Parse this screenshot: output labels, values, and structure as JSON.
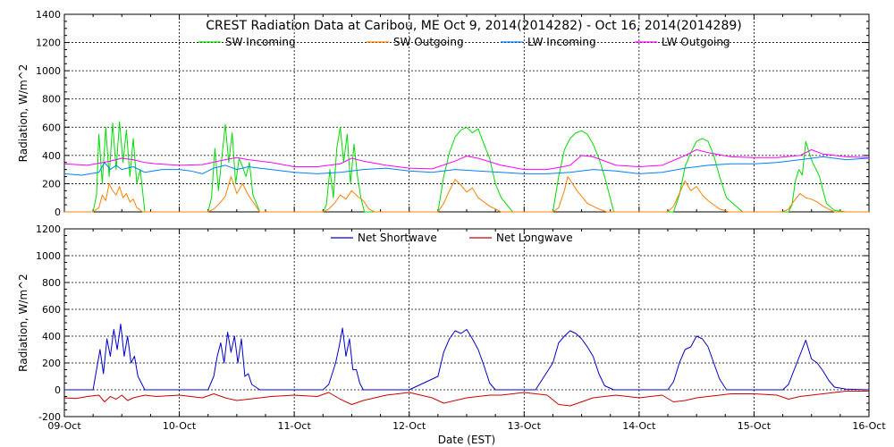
{
  "chart_data": [
    {
      "type": "line",
      "title": "CREST Radiation Data at Caribou, ME   Oct  9, 2014(2014282) - Oct 16, 2014(2014289)",
      "ylabel": "Radiation, W/m^2",
      "xlabel": "",
      "xlim": [
        0,
        7
      ],
      "ylim": [
        0,
        1400
      ],
      "yticks": [
        0,
        200,
        400,
        600,
        800,
        1000,
        1200,
        1400
      ],
      "grid": true,
      "legend": "top",
      "series": [
        {
          "name": "SW Incoming",
          "color": "#00dd00",
          "x": [
            0,
            0.1,
            0.2,
            0.25,
            0.28,
            0.3,
            0.33,
            0.36,
            0.39,
            0.42,
            0.45,
            0.48,
            0.51,
            0.54,
            0.57,
            0.6,
            0.63,
            0.66,
            0.7,
            0.8,
            1,
            1.25,
            1.28,
            1.31,
            1.34,
            1.37,
            1.4,
            1.43,
            1.46,
            1.49,
            1.52,
            1.55,
            1.58,
            1.61,
            1.64,
            1.7,
            1.9,
            2.25,
            2.28,
            2.31,
            2.34,
            2.37,
            2.4,
            2.43,
            2.46,
            2.49,
            2.52,
            2.55,
            2.58,
            2.61,
            2.64,
            2.7,
            2.9,
            3.25,
            3.3,
            3.35,
            3.4,
            3.45,
            3.5,
            3.55,
            3.6,
            3.65,
            3.7,
            3.75,
            3.8,
            3.9,
            4.1,
            4.25,
            4.3,
            4.35,
            4.4,
            4.45,
            4.5,
            4.55,
            4.6,
            4.65,
            4.7,
            4.78,
            4.9,
            5.25,
            5.3,
            5.35,
            5.4,
            5.45,
            5.5,
            5.55,
            5.6,
            5.65,
            5.7,
            5.76,
            5.9,
            6.25,
            6.3,
            6.33,
            6.36,
            6.39,
            6.42,
            6.45,
            6.48,
            6.51,
            6.54,
            6.57,
            6.6,
            6.63,
            6.7,
            6.8,
            7
          ],
          "values": [
            0,
            0,
            0,
            0,
            120,
            550,
            200,
            600,
            250,
            630,
            300,
            640,
            350,
            580,
            250,
            520,
            200,
            300,
            0,
            0,
            0,
            0,
            100,
            450,
            150,
            380,
            620,
            350,
            560,
            200,
            380,
            320,
            250,
            350,
            120,
            0,
            0,
            0,
            50,
            300,
            100,
            450,
            600,
            350,
            550,
            200,
            480,
            250,
            100,
            0,
            0,
            0,
            0,
            0,
            250,
            420,
            530,
            580,
            600,
            560,
            590,
            480,
            380,
            200,
            100,
            0,
            0,
            0,
            250,
            440,
            520,
            560,
            575,
            550,
            480,
            380,
            250,
            0,
            0,
            0,
            0,
            120,
            320,
            420,
            500,
            520,
            500,
            400,
            250,
            100,
            0,
            0,
            0,
            50,
            220,
            300,
            260,
            500,
            420,
            350,
            300,
            250,
            150,
            60,
            10,
            0,
            0
          ]
        },
        {
          "name": "SW Outgoing",
          "color": "#ff7f00",
          "x": [
            0,
            0.25,
            0.3,
            0.33,
            0.36,
            0.39,
            0.42,
            0.45,
            0.48,
            0.51,
            0.54,
            0.57,
            0.6,
            0.63,
            0.68,
            1,
            1.25,
            1.3,
            1.35,
            1.4,
            1.45,
            1.5,
            1.55,
            1.6,
            1.65,
            1.7,
            2,
            2.25,
            2.3,
            2.35,
            2.4,
            2.45,
            2.5,
            2.55,
            2.6,
            2.65,
            2.7,
            3,
            3.25,
            3.3,
            3.35,
            3.4,
            3.45,
            3.5,
            3.55,
            3.6,
            3.65,
            3.7,
            3.75,
            3.8,
            4,
            4.25,
            4.3,
            4.35,
            4.38,
            4.42,
            4.46,
            4.5,
            4.55,
            4.6,
            4.65,
            4.72,
            5,
            5.25,
            5.3,
            5.35,
            5.4,
            5.45,
            5.5,
            5.55,
            5.6,
            5.65,
            5.7,
            5.78,
            6,
            6.25,
            6.3,
            6.35,
            6.4,
            6.45,
            6.5,
            6.55,
            6.6,
            6.65,
            6.7,
            7
          ],
          "values": [
            0,
            0,
            30,
            120,
            80,
            200,
            150,
            120,
            180,
            100,
            130,
            70,
            90,
            30,
            0,
            0,
            0,
            20,
            60,
            110,
            250,
            130,
            200,
            120,
            60,
            0,
            0,
            0,
            20,
            60,
            120,
            90,
            150,
            110,
            80,
            20,
            0,
            0,
            0,
            60,
            150,
            230,
            190,
            140,
            170,
            100,
            70,
            40,
            20,
            0,
            0,
            0,
            30,
            150,
            250,
            200,
            150,
            110,
            60,
            40,
            20,
            0,
            0,
            0,
            40,
            130,
            220,
            150,
            180,
            120,
            80,
            50,
            20,
            0,
            0,
            0,
            20,
            80,
            130,
            100,
            90,
            70,
            40,
            20,
            0,
            0
          ]
        },
        {
          "name": "LW Incoming",
          "color": "#0080ff",
          "x": [
            0,
            0.15,
            0.3,
            0.35,
            0.4,
            0.45,
            0.5,
            0.6,
            0.7,
            0.85,
            1,
            1.1,
            1.2,
            1.3,
            1.4,
            1.5,
            1.6,
            1.7,
            1.8,
            2,
            2.2,
            2.4,
            2.6,
            2.8,
            3,
            3.2,
            3.4,
            3.6,
            3.8,
            4,
            4.2,
            4.4,
            4.6,
            4.8,
            5,
            5.2,
            5.4,
            5.6,
            5.8,
            6,
            6.2,
            6.4,
            6.6,
            6.8,
            7
          ],
          "values": [
            270,
            260,
            280,
            350,
            300,
            330,
            300,
            320,
            280,
            300,
            300,
            290,
            270,
            310,
            330,
            300,
            320,
            310,
            300,
            280,
            270,
            280,
            300,
            310,
            290,
            280,
            300,
            290,
            280,
            270,
            270,
            280,
            300,
            290,
            270,
            280,
            310,
            330,
            340,
            340,
            350,
            370,
            390,
            370,
            380
          ]
        },
        {
          "name": "LW Outgoing",
          "color": "#ff00ff",
          "x": [
            0,
            0.2,
            0.4,
            0.5,
            0.6,
            0.7,
            0.8,
            1,
            1.2,
            1.4,
            1.5,
            1.6,
            1.8,
            2,
            2.2,
            2.4,
            2.5,
            2.6,
            2.8,
            3,
            3.2,
            3.4,
            3.5,
            3.6,
            3.8,
            4,
            4.2,
            4.4,
            4.5,
            4.6,
            4.8,
            5,
            5.2,
            5.4,
            5.5,
            5.6,
            5.8,
            6,
            6.2,
            6.4,
            6.5,
            6.6,
            6.8,
            7
          ],
          "values": [
            340,
            330,
            360,
            380,
            370,
            350,
            340,
            330,
            335,
            370,
            385,
            370,
            350,
            320,
            320,
            340,
            380,
            360,
            330,
            310,
            305,
            360,
            395,
            380,
            330,
            300,
            300,
            330,
            400,
            390,
            330,
            320,
            330,
            400,
            440,
            420,
            390,
            385,
            385,
            400,
            440,
            410,
            390,
            385
          ]
        }
      ]
    },
    {
      "type": "line",
      "title": "",
      "ylabel": "Radiation, W/m^2",
      "xlabel": "Date (EST)",
      "categories": [
        "09-Oct",
        "10-Oct",
        "11-Oct",
        "12-Oct",
        "13-Oct",
        "14-Oct",
        "15-Oct",
        "16-Oct"
      ],
      "xlim": [
        0,
        7
      ],
      "ylim": [
        -200,
        1200
      ],
      "yticks": [
        -200,
        0,
        200,
        400,
        600,
        800,
        1000,
        1200
      ],
      "grid": true,
      "legend": "top",
      "series": [
        {
          "name": "Net Shortwave",
          "color": "#0000cc",
          "x": [
            0,
            0.2,
            0.25,
            0.28,
            0.31,
            0.34,
            0.37,
            0.4,
            0.43,
            0.46,
            0.49,
            0.52,
            0.55,
            0.58,
            0.61,
            0.64,
            0.7,
            1,
            1.25,
            1.3,
            1.33,
            1.36,
            1.39,
            1.42,
            1.45,
            1.48,
            1.51,
            1.54,
            1.57,
            1.6,
            1.63,
            1.7,
            2,
            2.25,
            2.3,
            2.33,
            2.36,
            2.39,
            2.42,
            2.45,
            2.48,
            2.51,
            2.54,
            2.57,
            2.6,
            2.63,
            2.7,
            3,
            3.25,
            3.3,
            3.35,
            3.4,
            3.45,
            3.5,
            3.55,
            3.6,
            3.65,
            3.7,
            3.75,
            3.8,
            3.9,
            4.1,
            4.25,
            4.3,
            4.35,
            4.4,
            4.45,
            4.5,
            4.55,
            4.6,
            4.65,
            4.7,
            4.78,
            4.9,
            5.25,
            5.3,
            5.35,
            5.4,
            5.45,
            5.5,
            5.55,
            5.6,
            5.65,
            5.7,
            5.76,
            5.9,
            6.25,
            6.3,
            6.35,
            6.4,
            6.45,
            6.5,
            6.55,
            6.6,
            6.65,
            6.7,
            6.8,
            7
          ],
          "values": [
            0,
            0,
            0,
            150,
            300,
            120,
            380,
            250,
            450,
            300,
            490,
            250,
            400,
            200,
            250,
            100,
            0,
            0,
            0,
            100,
            250,
            350,
            200,
            430,
            280,
            400,
            200,
            380,
            100,
            120,
            40,
            0,
            0,
            0,
            40,
            120,
            200,
            320,
            460,
            250,
            380,
            150,
            150,
            50,
            0,
            0,
            0,
            0,
            100,
            280,
            380,
            440,
            420,
            450,
            380,
            300,
            180,
            50,
            0,
            0,
            0,
            0,
            200,
            350,
            400,
            440,
            420,
            380,
            320,
            250,
            120,
            30,
            0,
            0,
            0,
            60,
            200,
            300,
            320,
            400,
            380,
            320,
            200,
            80,
            0,
            0,
            0,
            40,
            150,
            260,
            370,
            230,
            200,
            140,
            70,
            20,
            5,
            0
          ]
        },
        {
          "name": "Net Longwave",
          "color": "#cc0000",
          "x": [
            0,
            0.1,
            0.2,
            0.3,
            0.35,
            0.4,
            0.45,
            0.5,
            0.55,
            0.6,
            0.7,
            0.8,
            1,
            1.2,
            1.3,
            1.4,
            1.5,
            1.6,
            1.7,
            1.8,
            2,
            2.2,
            2.3,
            2.4,
            2.5,
            2.6,
            2.7,
            2.8,
            3,
            3.2,
            3.3,
            3.4,
            3.5,
            3.6,
            3.7,
            3.8,
            4,
            4.2,
            4.3,
            4.4,
            4.5,
            4.6,
            4.7,
            4.8,
            5,
            5.2,
            5.3,
            5.4,
            5.5,
            5.6,
            5.7,
            5.8,
            6,
            6.2,
            6.3,
            6.4,
            6.5,
            6.6,
            6.7,
            6.8,
            7
          ],
          "values": [
            -60,
            -65,
            -50,
            -40,
            -90,
            -50,
            -70,
            -40,
            -80,
            -60,
            -40,
            -50,
            -40,
            -60,
            -30,
            -60,
            -80,
            -70,
            -60,
            -50,
            -40,
            -50,
            -20,
            -70,
            -110,
            -80,
            -60,
            -40,
            -20,
            -60,
            -100,
            -80,
            -60,
            -50,
            -40,
            -40,
            -20,
            -40,
            -110,
            -120,
            -90,
            -60,
            -50,
            -40,
            -60,
            -40,
            -90,
            -80,
            -60,
            -50,
            -40,
            -30,
            -30,
            -40,
            -70,
            -50,
            -40,
            -30,
            -20,
            -10,
            -10
          ]
        }
      ]
    }
  ]
}
